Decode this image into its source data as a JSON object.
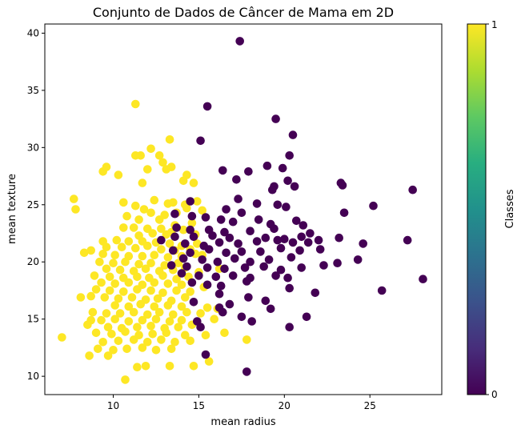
{
  "chart_data": {
    "type": "scatter",
    "title": "Conjunto de Dados de Câncer de Mama em 2D",
    "xlabel": "mean radius",
    "ylabel": "mean texture",
    "xlim": [
      6.0,
      29.2
    ],
    "ylim": [
      8.4,
      40.8
    ],
    "xticks": [
      10,
      15,
      20,
      25
    ],
    "yticks": [
      10,
      15,
      20,
      25,
      30,
      35,
      40
    ],
    "grid": false,
    "colorbar": {
      "label": "Classes",
      "ticks": [
        "0",
        "1"
      ],
      "colormap": "viridis"
    },
    "class_colors": {
      "0": "#440154",
      "1": "#fde725"
    },
    "series": [
      {
        "class": 1,
        "points": [
          [
            11.3,
            33.8
          ],
          [
            13.3,
            30.7
          ],
          [
            11.3,
            29.3
          ],
          [
            11.6,
            29.3
          ],
          [
            12.2,
            29.9
          ],
          [
            12.7,
            29.3
          ],
          [
            12.9,
            28.7
          ],
          [
            9.4,
            27.9
          ],
          [
            9.6,
            28.3
          ],
          [
            10.3,
            27.6
          ],
          [
            12.0,
            28.1
          ],
          [
            13.1,
            28.1
          ],
          [
            13.4,
            28.3
          ],
          [
            14.3,
            27.6
          ],
          [
            11.7,
            26.9
          ],
          [
            14.1,
            27.1
          ],
          [
            14.7,
            26.9
          ],
          [
            7.7,
            25.5
          ],
          [
            7.8,
            24.6
          ],
          [
            12.4,
            25.4
          ],
          [
            13.2,
            25.1
          ],
          [
            13.5,
            25.2
          ],
          [
            14.2,
            25.0
          ],
          [
            14.9,
            25.3
          ],
          [
            10.6,
            25.2
          ],
          [
            11.3,
            24.9
          ],
          [
            11.8,
            24.6
          ],
          [
            12.2,
            24.3
          ],
          [
            13.0,
            24.1
          ],
          [
            13.7,
            24.3
          ],
          [
            14.3,
            24.7
          ],
          [
            15.2,
            24.5
          ],
          [
            10.8,
            24.0
          ],
          [
            11.5,
            23.7
          ],
          [
            12.7,
            23.7
          ],
          [
            13.6,
            23.2
          ],
          [
            14.6,
            23.4
          ],
          [
            10.6,
            23.0
          ],
          [
            11.2,
            23.0
          ],
          [
            12.0,
            22.9
          ],
          [
            12.8,
            22.9
          ],
          [
            13.4,
            22.6
          ],
          [
            14.1,
            22.8
          ],
          [
            11.5,
            22.3
          ],
          [
            12.3,
            22.5
          ],
          [
            13.1,
            22.4
          ],
          [
            14.8,
            22.4
          ],
          [
            9.4,
            21.8
          ],
          [
            10.2,
            21.9
          ],
          [
            10.9,
            21.8
          ],
          [
            11.7,
            21.8
          ],
          [
            12.5,
            21.7
          ],
          [
            13.3,
            21.6
          ],
          [
            14.0,
            21.4
          ],
          [
            14.9,
            21.6
          ],
          [
            9.6,
            21.3
          ],
          [
            10.5,
            21.3
          ],
          [
            11.3,
            21.2
          ],
          [
            12.0,
            21.4
          ],
          [
            12.8,
            21.1
          ],
          [
            13.6,
            21.0
          ],
          [
            14.5,
            21.1
          ],
          [
            8.3,
            20.8
          ],
          [
            8.7,
            21.0
          ],
          [
            9.4,
            20.7
          ],
          [
            10.1,
            20.6
          ],
          [
            10.9,
            20.5
          ],
          [
            11.7,
            20.5
          ],
          [
            12.4,
            20.6
          ],
          [
            13.2,
            20.4
          ],
          [
            14.0,
            20.5
          ],
          [
            14.8,
            20.7
          ],
          [
            15.2,
            20.6
          ],
          [
            9.2,
            20.0
          ],
          [
            10.0,
            19.9
          ],
          [
            10.7,
            20.0
          ],
          [
            11.5,
            19.8
          ],
          [
            12.2,
            19.9
          ],
          [
            13.0,
            19.7
          ],
          [
            13.8,
            19.9
          ],
          [
            9.6,
            19.4
          ],
          [
            10.4,
            19.3
          ],
          [
            11.2,
            19.2
          ],
          [
            11.9,
            19.4
          ],
          [
            12.7,
            19.2
          ],
          [
            13.5,
            19.3
          ],
          [
            14.2,
            19.5
          ],
          [
            15.0,
            19.1
          ],
          [
            16.2,
            19.4
          ],
          [
            8.9,
            18.8
          ],
          [
            9.8,
            18.7
          ],
          [
            10.6,
            18.6
          ],
          [
            11.4,
            18.7
          ],
          [
            12.1,
            18.6
          ],
          [
            12.9,
            18.8
          ],
          [
            13.7,
            18.5
          ],
          [
            14.4,
            18.7
          ],
          [
            9.3,
            18.2
          ],
          [
            10.1,
            18.1
          ],
          [
            10.9,
            18.2
          ],
          [
            11.7,
            18.0
          ],
          [
            12.4,
            18.2
          ],
          [
            13.2,
            18.1
          ],
          [
            14.0,
            18.0
          ],
          [
            15.3,
            17.8
          ],
          [
            9.0,
            17.6
          ],
          [
            9.8,
            17.5
          ],
          [
            10.6,
            17.4
          ],
          [
            11.4,
            17.6
          ],
          [
            12.2,
            17.5
          ],
          [
            12.9,
            17.3
          ],
          [
            13.7,
            17.5
          ],
          [
            14.5,
            17.4
          ],
          [
            8.1,
            16.9
          ],
          [
            8.7,
            17.0
          ],
          [
            9.5,
            16.9
          ],
          [
            10.3,
            16.8
          ],
          [
            11.1,
            16.9
          ],
          [
            11.9,
            16.7
          ],
          [
            12.6,
            16.8
          ],
          [
            13.4,
            16.6
          ],
          [
            14.2,
            16.9
          ],
          [
            10.1,
            16.2
          ],
          [
            10.9,
            16.1
          ],
          [
            11.6,
            16.3
          ],
          [
            12.4,
            16.1
          ],
          [
            13.2,
            16.2
          ],
          [
            14.0,
            16.1
          ],
          [
            15.5,
            16.0
          ],
          [
            16.1,
            15.9
          ],
          [
            8.8,
            15.6
          ],
          [
            9.6,
            15.5
          ],
          [
            10.4,
            15.5
          ],
          [
            11.2,
            15.6
          ],
          [
            12.0,
            15.4
          ],
          [
            12.7,
            15.6
          ],
          [
            13.5,
            15.4
          ],
          [
            14.3,
            15.6
          ],
          [
            15.1,
            15.5
          ],
          [
            8.7,
            14.9
          ],
          [
            9.3,
            14.9
          ],
          [
            10.1,
            15.0
          ],
          [
            10.9,
            14.8
          ],
          [
            11.7,
            14.9
          ],
          [
            12.5,
            15.0
          ],
          [
            13.3,
            14.8
          ],
          [
            14.0,
            14.9
          ],
          [
            15.9,
            15.0
          ],
          [
            8.5,
            14.5
          ],
          [
            9.7,
            14.3
          ],
          [
            10.5,
            14.2
          ],
          [
            11.4,
            14.3
          ],
          [
            12.2,
            14.4
          ],
          [
            13.0,
            14.2
          ],
          [
            13.8,
            14.3
          ],
          [
            14.6,
            14.5
          ],
          [
            9.0,
            13.8
          ],
          [
            9.9,
            13.7
          ],
          [
            10.7,
            13.9
          ],
          [
            11.5,
            13.6
          ],
          [
            12.3,
            13.7
          ],
          [
            13.1,
            13.8
          ],
          [
            14.2,
            13.6
          ],
          [
            15.4,
            13.6
          ],
          [
            16.5,
            13.8
          ],
          [
            7.0,
            13.4
          ],
          [
            9.4,
            13.0
          ],
          [
            10.3,
            13.1
          ],
          [
            11.2,
            13.2
          ],
          [
            12.0,
            13.0
          ],
          [
            12.8,
            13.2
          ],
          [
            13.6,
            13.0
          ],
          [
            14.5,
            13.1
          ],
          [
            17.8,
            13.2
          ],
          [
            9.1,
            12.4
          ],
          [
            10.0,
            12.3
          ],
          [
            10.8,
            12.4
          ],
          [
            11.7,
            12.5
          ],
          [
            12.5,
            12.3
          ],
          [
            13.4,
            12.4
          ],
          [
            8.6,
            11.8
          ],
          [
            9.7,
            11.8
          ],
          [
            15.6,
            11.3
          ],
          [
            11.4,
            10.8
          ],
          [
            11.9,
            10.9
          ],
          [
            13.3,
            10.9
          ],
          [
            14.7,
            10.9
          ],
          [
            10.7,
            9.7
          ]
        ]
      },
      {
        "class": 0,
        "points": [
          [
            17.4,
            39.3
          ],
          [
            15.5,
            33.6
          ],
          [
            19.5,
            32.5
          ],
          [
            20.5,
            31.1
          ],
          [
            15.1,
            30.6
          ],
          [
            20.3,
            29.3
          ],
          [
            16.4,
            28.0
          ],
          [
            17.9,
            27.9
          ],
          [
            19.0,
            28.4
          ],
          [
            19.9,
            28.2
          ],
          [
            19.4,
            26.6
          ],
          [
            19.3,
            26.3
          ],
          [
            20.2,
            27.1
          ],
          [
            20.6,
            26.6
          ],
          [
            17.2,
            27.2
          ],
          [
            23.3,
            26.9
          ],
          [
            23.4,
            26.7
          ],
          [
            27.5,
            26.3
          ],
          [
            17.3,
            25.5
          ],
          [
            18.4,
            25.1
          ],
          [
            19.6,
            25.0
          ],
          [
            14.5,
            25.3
          ],
          [
            16.6,
            24.6
          ],
          [
            17.5,
            24.3
          ],
          [
            20.1,
            24.8
          ],
          [
            23.5,
            24.3
          ],
          [
            25.2,
            24.9
          ],
          [
            13.6,
            24.2
          ],
          [
            14.6,
            24.0
          ],
          [
            15.4,
            23.9
          ],
          [
            16.3,
            23.7
          ],
          [
            17.0,
            23.5
          ],
          [
            18.5,
            23.7
          ],
          [
            19.2,
            23.3
          ],
          [
            20.7,
            23.6
          ],
          [
            13.7,
            23.0
          ],
          [
            14.5,
            22.8
          ],
          [
            15.6,
            22.8
          ],
          [
            16.5,
            22.6
          ],
          [
            18.0,
            22.7
          ],
          [
            19.4,
            22.9
          ],
          [
            21.1,
            23.2
          ],
          [
            21.5,
            22.5
          ],
          [
            13.6,
            22.2
          ],
          [
            14.7,
            22.2
          ],
          [
            15.8,
            22.3
          ],
          [
            16.8,
            22.1
          ],
          [
            18.9,
            22.1
          ],
          [
            20.0,
            22.0
          ],
          [
            21.0,
            22.2
          ],
          [
            22.0,
            21.9
          ],
          [
            23.2,
            22.1
          ],
          [
            12.8,
            21.9
          ],
          [
            14.2,
            21.6
          ],
          [
            15.3,
            21.4
          ],
          [
            16.2,
            21.7
          ],
          [
            17.3,
            21.6
          ],
          [
            18.4,
            21.8
          ],
          [
            19.6,
            21.9
          ],
          [
            20.5,
            21.7
          ],
          [
            21.4,
            21.7
          ],
          [
            13.5,
            21.0
          ],
          [
            14.5,
            20.8
          ],
          [
            15.6,
            21.1
          ],
          [
            16.6,
            20.8
          ],
          [
            17.5,
            20.9
          ],
          [
            18.6,
            20.9
          ],
          [
            19.8,
            21.2
          ],
          [
            20.9,
            21.0
          ],
          [
            22.1,
            21.1
          ],
          [
            24.6,
            21.6
          ],
          [
            27.2,
            21.9
          ],
          [
            14.1,
            20.3
          ],
          [
            15.2,
            20.2
          ],
          [
            16.1,
            20.0
          ],
          [
            17.1,
            20.3
          ],
          [
            18.0,
            20.0
          ],
          [
            19.1,
            20.2
          ],
          [
            20.4,
            20.4
          ],
          [
            13.4,
            19.7
          ],
          [
            14.3,
            19.6
          ],
          [
            15.5,
            19.5
          ],
          [
            16.5,
            19.4
          ],
          [
            17.7,
            19.5
          ],
          [
            18.8,
            19.6
          ],
          [
            19.8,
            19.3
          ],
          [
            21.0,
            19.5
          ],
          [
            22.3,
            19.7
          ],
          [
            23.1,
            19.9
          ],
          [
            24.3,
            20.2
          ],
          [
            14.0,
            19.0
          ],
          [
            15.0,
            18.8
          ],
          [
            16.0,
            18.7
          ],
          [
            17.0,
            18.8
          ],
          [
            18.0,
            18.6
          ],
          [
            19.5,
            18.8
          ],
          [
            20.2,
            18.6
          ],
          [
            28.1,
            18.5
          ],
          [
            14.6,
            18.2
          ],
          [
            15.5,
            18.0
          ],
          [
            16.3,
            17.9
          ],
          [
            17.8,
            18.3
          ],
          [
            20.3,
            17.7
          ],
          [
            21.8,
            17.3
          ],
          [
            25.7,
            17.5
          ],
          [
            16.2,
            17.2
          ],
          [
            17.9,
            16.9
          ],
          [
            18.9,
            16.6
          ],
          [
            14.7,
            16.5
          ],
          [
            16.8,
            16.3
          ],
          [
            16.2,
            16.0
          ],
          [
            19.2,
            15.9
          ],
          [
            16.4,
            15.6
          ],
          [
            17.5,
            15.2
          ],
          [
            21.3,
            15.2
          ],
          [
            14.9,
            14.8
          ],
          [
            15.1,
            14.3
          ],
          [
            18.1,
            14.8
          ],
          [
            20.3,
            14.3
          ],
          [
            15.4,
            11.9
          ],
          [
            17.8,
            10.4
          ]
        ]
      }
    ]
  }
}
